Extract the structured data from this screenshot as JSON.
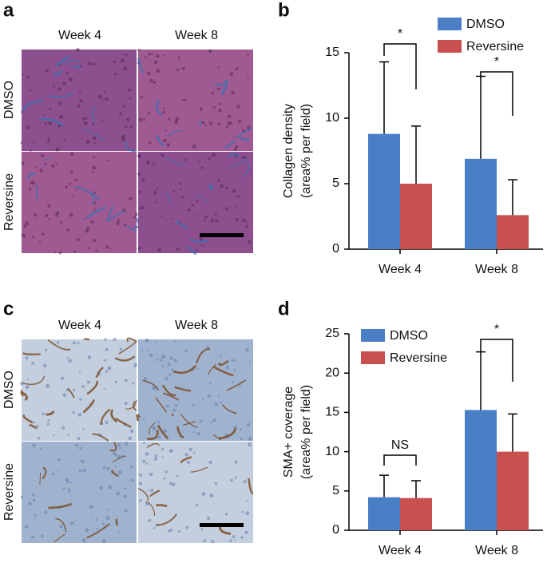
{
  "panel_labels": [
    "a",
    "b",
    "c",
    "d"
  ],
  "micrographs": [
    {
      "columns": [
        "Week 4",
        "Week 8"
      ],
      "rows": [
        "DMSO",
        "Reversine"
      ]
    },
    {
      "columns": [
        "Week 4",
        "Week 8"
      ],
      "rows": [
        "DMSO",
        "Reversine"
      ]
    }
  ],
  "chart_data": [
    {
      "type": "bar",
      "ylabel": [
        "Collagen density",
        "(area% per field)"
      ],
      "categories": [
        "Week 4",
        "Week 8"
      ],
      "series": [
        {
          "name": "DMSO",
          "color": "#4a7fc6",
          "values": [
            8.8,
            6.9
          ],
          "errors": [
            5.5,
            6.3
          ]
        },
        {
          "name": "Reversine",
          "color": "#c9504f",
          "values": [
            5.0,
            2.6
          ],
          "errors": [
            4.4,
            2.7
          ]
        }
      ],
      "ylim": [
        0,
        15
      ],
      "yticks": [
        0,
        5,
        10,
        15
      ],
      "annotations": [
        "*",
        "*"
      ]
    },
    {
      "type": "bar",
      "ylabel": [
        "SMA+ coverage",
        "(area% per field)"
      ],
      "categories": [
        "Week 4",
        "Week 8"
      ],
      "series": [
        {
          "name": "DMSO",
          "color": "#4a7fc6",
          "values": [
            4.2,
            15.3
          ],
          "errors": [
            2.8,
            7.4
          ]
        },
        {
          "name": "Reversine",
          "color": "#c9504f",
          "values": [
            4.1,
            10.0
          ],
          "errors": [
            2.2,
            4.8
          ]
        }
      ],
      "ylim": [
        0,
        25
      ],
      "yticks": [
        0,
        5,
        10,
        15,
        20,
        25
      ],
      "annotations": [
        "NS",
        "*"
      ]
    }
  ]
}
